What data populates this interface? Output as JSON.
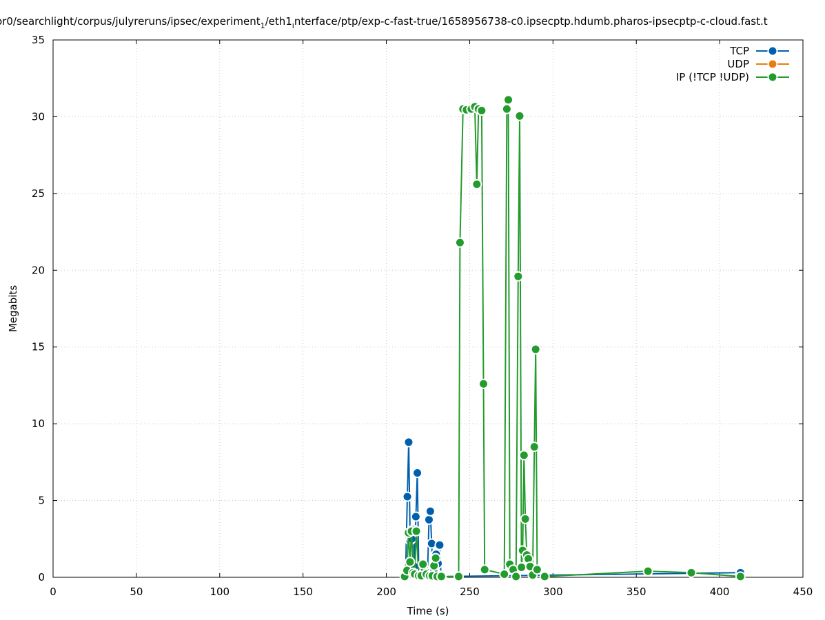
{
  "chart_data": {
    "type": "line",
    "title_main": "or0/searchlight/corpus/julyreruns/ipsec/experiment",
    "title_sub1": "1",
    "title_mid": "/eth1",
    "title_sub2": "i",
    "title_rest": "nterface/ptp/exp-c-fast-true/1658956738-c0.ipsecptp.hdumb.pharos-ipsecptp-c-cloud.fast.t",
    "xlabel": "Time (s)",
    "ylabel": "Megabits",
    "xlim": [
      0,
      450
    ],
    "ylim": [
      0,
      35
    ],
    "xticks": [
      0,
      50,
      100,
      150,
      200,
      250,
      300,
      350,
      400,
      450
    ],
    "yticks": [
      0,
      5,
      10,
      15,
      20,
      25,
      30,
      35
    ],
    "grid": true,
    "legend_position": "top-right",
    "series": [
      {
        "name": "TCP",
        "color": "#005fad",
        "points": [
          [
            211.5,
            0.1
          ],
          [
            212.6,
            5.25
          ],
          [
            213.4,
            8.8
          ],
          [
            214.3,
            2.4
          ],
          [
            215.2,
            2.5
          ],
          [
            216.1,
            3.1
          ],
          [
            216.8,
            0.7
          ],
          [
            217.7,
            3.95
          ],
          [
            218.6,
            6.8
          ],
          [
            219.5,
            0.1
          ],
          [
            221.2,
            0.2
          ],
          [
            223.0,
            0.5
          ],
          [
            224.7,
            0.3
          ],
          [
            225.6,
            3.75
          ],
          [
            226.4,
            4.3
          ],
          [
            227.2,
            2.2
          ],
          [
            228.0,
            0.3
          ],
          [
            228.9,
            0.8
          ],
          [
            229.9,
            1.5
          ],
          [
            231.0,
            0.9
          ],
          [
            232.0,
            2.1
          ],
          [
            232.8,
            0.1
          ],
          [
            233.6,
            0.05
          ],
          [
            412.5,
            0.3
          ]
        ]
      },
      {
        "name": "UDP",
        "color": "#e87d0d",
        "points": []
      },
      {
        "name": "IP (!TCP  !UDP)",
        "color": "#249b2d",
        "points": [
          [
            211.0,
            0.05
          ],
          [
            212.4,
            0.45
          ],
          [
            213.3,
            2.9
          ],
          [
            214.2,
            1.0
          ],
          [
            215.1,
            3.0
          ],
          [
            216.1,
            0.3
          ],
          [
            217.0,
            0.2
          ],
          [
            218.0,
            3.0
          ],
          [
            219.4,
            0.1
          ],
          [
            221.0,
            0.1
          ],
          [
            222.0,
            0.85
          ],
          [
            224.0,
            0.2
          ],
          [
            226.0,
            0.1
          ],
          [
            227.6,
            0.1
          ],
          [
            228.6,
            0.75
          ],
          [
            229.6,
            1.25
          ],
          [
            230.5,
            0.05
          ],
          [
            233.0,
            0.05
          ],
          [
            243.4,
            0.05
          ],
          [
            244.2,
            21.8
          ],
          [
            246.0,
            30.5
          ],
          [
            248.1,
            30.45
          ],
          [
            251.0,
            30.5
          ],
          [
            253.1,
            30.65
          ],
          [
            254.3,
            25.6
          ],
          [
            255.3,
            30.5
          ],
          [
            257.2,
            30.4
          ],
          [
            258.3,
            12.6
          ],
          [
            259.0,
            0.5
          ],
          [
            270.8,
            0.2
          ],
          [
            272.3,
            30.5
          ],
          [
            273.2,
            31.1
          ],
          [
            274.1,
            0.85
          ],
          [
            276.1,
            0.5
          ],
          [
            277.8,
            0.05
          ],
          [
            279.1,
            19.6
          ],
          [
            280.0,
            30.05
          ],
          [
            281.1,
            0.65
          ],
          [
            281.8,
            1.75
          ],
          [
            282.6,
            7.95
          ],
          [
            283.4,
            3.8
          ],
          [
            284.3,
            1.45
          ],
          [
            285.2,
            1.2
          ],
          [
            286.3,
            0.7
          ],
          [
            287.8,
            0.15
          ],
          [
            288.8,
            8.5
          ],
          [
            289.6,
            14.85
          ],
          [
            290.5,
            0.5
          ],
          [
            295.0,
            0.05
          ],
          [
            357.0,
            0.4
          ],
          [
            383.0,
            0.3
          ],
          [
            412.5,
            0.05
          ]
        ]
      }
    ]
  }
}
